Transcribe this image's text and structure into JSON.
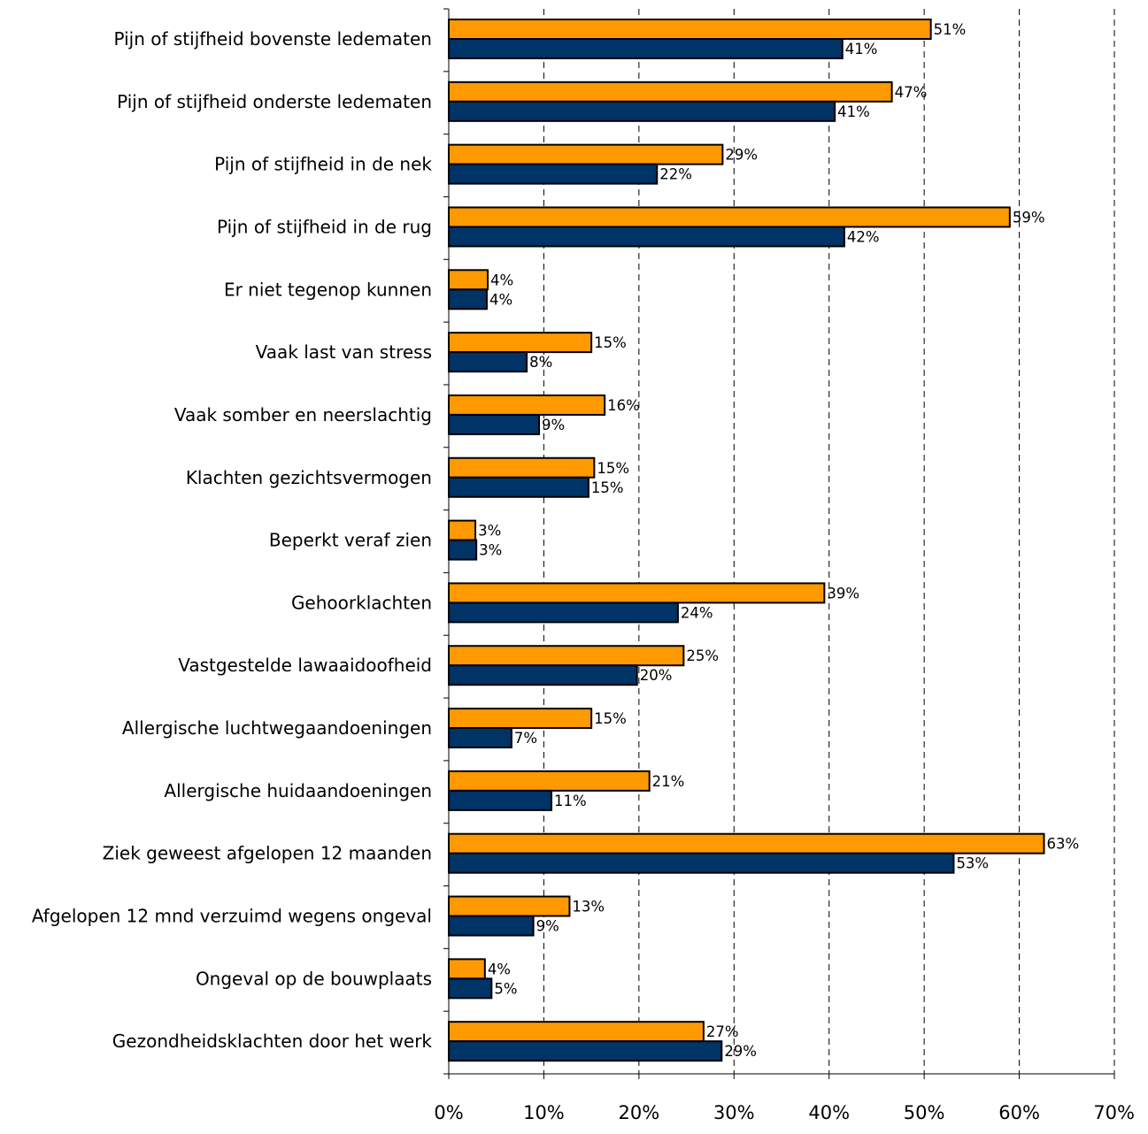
{
  "chart_data": {
    "type": "bar",
    "orientation": "horizontal",
    "categories": [
      "Pijn of stijfheid bovenste ledematen",
      "Pijn of stijfheid onderste ledematen",
      "Pijn of stijfheid in de nek",
      "Pijn of stijfheid in de rug",
      "Er niet tegenop kunnen",
      "Vaak last van stress",
      "Vaak somber en neerslachtig",
      "Klachten gezichtsvermogen",
      "Beperkt veraf zien",
      "Gehoorklachten",
      "Vastgestelde lawaaidoofheid",
      "Allergische luchtwegaandoeningen",
      "Allergische huidaandoeningen",
      "Ziek geweest afgelopen 12 maanden",
      "Afgelopen 12 mnd verzuimd wegens ongeval",
      "Ongeval op de bouwplaats",
      "Gezondheidsklachten door het werk"
    ],
    "series": [
      {
        "color": "#FF9900",
        "values": [
          50.7,
          46.6,
          28.8,
          59.0,
          4.1,
          15.0,
          16.4,
          15.3,
          2.8,
          39.5,
          24.7,
          15.0,
          21.1,
          62.6,
          12.7,
          3.8,
          26.8
        ],
        "labels": [
          "51%",
          "47%",
          "29%",
          "59%",
          "4%",
          "15%",
          "16%",
          "15%",
          "3%",
          "39%",
          "25%",
          "15%",
          "21%",
          "63%",
          "13%",
          "4%",
          "27%"
        ]
      },
      {
        "color": "#003366",
        "values": [
          41.4,
          40.6,
          21.9,
          41.6,
          4.0,
          8.2,
          9.5,
          14.7,
          2.9,
          24.1,
          19.8,
          6.6,
          10.8,
          53.1,
          8.9,
          4.5,
          28.7
        ],
        "labels": [
          "41%",
          "41%",
          "22%",
          "42%",
          "4%",
          "8%",
          "9%",
          "15%",
          "3%",
          "24%",
          "20%",
          "7%",
          "11%",
          "53%",
          "9%",
          "5%",
          "29%"
        ]
      }
    ],
    "x_ticks": [
      "0%",
      "10%",
      "20%",
      "30%",
      "40%",
      "50%",
      "60%",
      "70%"
    ],
    "xlim": [
      0,
      70
    ],
    "grid": "vertical dashed",
    "legend": "none"
  }
}
